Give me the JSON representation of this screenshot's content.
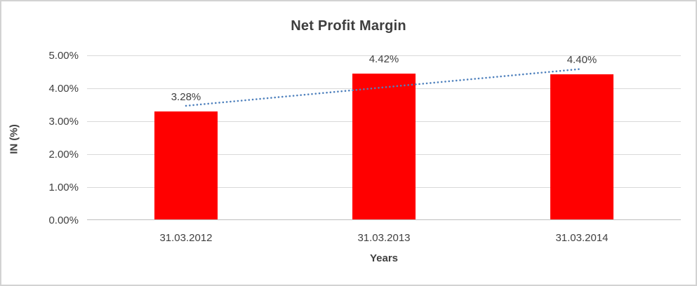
{
  "chart_data": {
    "type": "bar",
    "title": "Net Profit Margin",
    "xlabel": "Years",
    "ylabel": "IN (%)",
    "categories": [
      "31.03.2012",
      "31.03.2013",
      "31.03.2014"
    ],
    "values": [
      3.28,
      4.42,
      4.4
    ],
    "data_labels": [
      "3.28%",
      "4.42%",
      "4.40%"
    ],
    "ylim": [
      0,
      5
    ],
    "ytick_labels": [
      "0.00%",
      "1.00%",
      "2.00%",
      "3.00%",
      "4.00%",
      "5.00%"
    ],
    "grid": true,
    "legend": "none",
    "bar_color": "#ff0000",
    "gridline_color": "#d9d9d9",
    "axis_line_color": "#bfbfbf",
    "text_color": "#404040",
    "trendline": {
      "type": "linear",
      "style": "dotted",
      "color": "#4f81bd",
      "start_value": 3.47,
      "end_value": 4.59
    }
  }
}
